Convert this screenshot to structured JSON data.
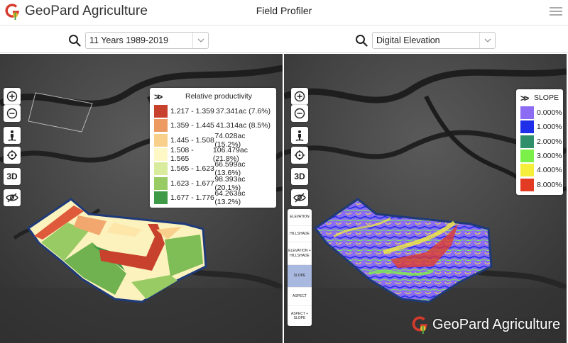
{
  "header": {
    "logo_text": "GeoPard Agriculture",
    "title": "Field Profiler"
  },
  "left": {
    "selector_value": "11 Years 1989-2019",
    "legend": {
      "title": "Relative productivity",
      "rows": [
        {
          "range": "1.217 - 1.359",
          "area": "37.341ac (7.6%)",
          "color": "#c8412d"
        },
        {
          "range": "1.359 - 1.445",
          "area": "41.314ac (8.5%)",
          "color": "#ec9a62"
        },
        {
          "range": "1.445 - 1.508",
          "area": "74.028ac (15.2%)",
          "color": "#f9d08b"
        },
        {
          "range": "1.508 - 1.565",
          "area": "106.479ac (21.8%)",
          "color": "#fef8c6"
        },
        {
          "range": "1.565 - 1.623",
          "area": "66.599ac (13.6%)",
          "color": "#d9ec9e"
        },
        {
          "range": "1.623 - 1.677",
          "area": "98.393ac (20.1%)",
          "color": "#98cb64"
        },
        {
          "range": "1.677 - 1.776",
          "area": "64.263ac (13.2%)",
          "color": "#3f9a47"
        }
      ]
    }
  },
  "right": {
    "selector_value": "Digital Elevation",
    "legend": {
      "title": "SLOPE",
      "rows": [
        {
          "label": "0.000%",
          "color": "#8b6cf2"
        },
        {
          "label": "1.000%",
          "color": "#1f2ee8"
        },
        {
          "label": "2.000%",
          "color": "#2f8f6a"
        },
        {
          "label": "3.000%",
          "color": "#7bf049"
        },
        {
          "label": "4.000%",
          "color": "#f5ef3c"
        },
        {
          "label": "8.000%",
          "color": "#e33a24"
        }
      ]
    },
    "layers": [
      {
        "label": "ELEVATION"
      },
      {
        "label": "HILLSHADE"
      },
      {
        "label": "ELEVATION + HILLSHADE"
      },
      {
        "label": "SLOPE",
        "active": true
      },
      {
        "label": "ASPECT"
      },
      {
        "label": "ASPECT + SLOPE"
      }
    ]
  },
  "controls": {
    "zoom_in": "zoom-in-icon",
    "zoom_out": "zoom-out-icon",
    "person": "pegman-icon",
    "locate": "crosshair-icon",
    "three_d_label": "3D",
    "hide": "eye-off-icon"
  },
  "watermark": {
    "text": "GeoPard Agriculture"
  }
}
